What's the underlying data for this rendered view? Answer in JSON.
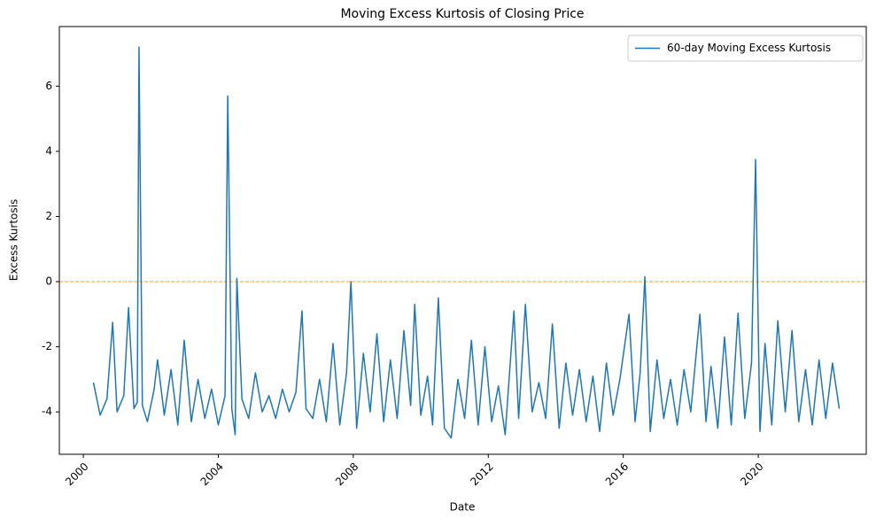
{
  "chart_data": {
    "type": "line",
    "title": "Moving Excess Kurtosis of Closing Price",
    "x_label": "Date",
    "y_label": "Excess Kurtosis",
    "x": [
      2000.3,
      2000.5,
      2000.7,
      2000.87,
      2001.0,
      2001.2,
      2001.34,
      2001.5,
      2001.6,
      2001.65,
      2001.75,
      2001.9,
      2002.1,
      2002.2,
      2002.4,
      2002.6,
      2002.8,
      2002.99,
      2003.2,
      2003.4,
      2003.6,
      2003.8,
      2004.0,
      2004.2,
      2004.28,
      2004.4,
      2004.5,
      2004.55,
      2004.7,
      2004.9,
      2005.1,
      2005.3,
      2005.5,
      2005.7,
      2005.9,
      2006.1,
      2006.3,
      2006.48,
      2006.6,
      2006.8,
      2007.0,
      2007.2,
      2007.4,
      2007.6,
      2007.8,
      2007.93,
      2008.1,
      2008.3,
      2008.5,
      2008.7,
      2008.9,
      2009.1,
      2009.3,
      2009.5,
      2009.7,
      2009.82,
      2010.0,
      2010.2,
      2010.35,
      2010.52,
      2010.7,
      2010.9,
      2011.1,
      2011.3,
      2011.5,
      2011.7,
      2011.9,
      2012.1,
      2012.3,
      2012.5,
      2012.76,
      2012.9,
      2013.1,
      2013.3,
      2013.5,
      2013.7,
      2013.9,
      2014.1,
      2014.3,
      2014.5,
      2014.7,
      2014.9,
      2015.1,
      2015.3,
      2015.5,
      2015.7,
      2015.9,
      2016.17,
      2016.35,
      2016.5,
      2016.64,
      2016.8,
      2017.0,
      2017.2,
      2017.4,
      2017.6,
      2017.8,
      2018.0,
      2018.27,
      2018.45,
      2018.6,
      2018.8,
      2019.0,
      2019.2,
      2019.4,
      2019.6,
      2019.8,
      2019.92,
      2020.05,
      2020.2,
      2020.4,
      2020.58,
      2020.8,
      2021.0,
      2021.2,
      2021.4,
      2021.6,
      2021.8,
      2022.0,
      2022.2,
      2022.4
    ],
    "series": [
      {
        "name": "60-day Moving Excess Kurtosis",
        "color": "#1f77b4",
        "values": [
          -3.1,
          -4.1,
          -3.6,
          -1.25,
          -4.0,
          -3.5,
          -0.8,
          -3.9,
          -3.7,
          7.2,
          -3.8,
          -4.3,
          -3.3,
          -2.4,
          -4.1,
          -2.7,
          -4.4,
          -1.8,
          -4.3,
          -3.0,
          -4.2,
          -3.3,
          -4.4,
          -3.5,
          5.7,
          -3.9,
          -4.7,
          0.1,
          -3.6,
          -4.2,
          -2.8,
          -4.0,
          -3.5,
          -4.2,
          -3.3,
          -4.0,
          -3.4,
          -0.9,
          -3.9,
          -4.2,
          -3.0,
          -4.3,
          -1.9,
          -4.4,
          -2.8,
          0.0,
          -4.5,
          -2.2,
          -4.0,
          -1.6,
          -4.3,
          -2.4,
          -4.2,
          -1.5,
          -3.8,
          -0.7,
          -4.1,
          -2.9,
          -4.4,
          -0.5,
          -4.5,
          -4.8,
          -3.0,
          -4.2,
          -1.8,
          -4.4,
          -2.0,
          -4.3,
          -3.2,
          -4.7,
          -0.9,
          -4.2,
          -0.7,
          -4.0,
          -3.1,
          -4.2,
          -1.3,
          -4.5,
          -2.5,
          -4.1,
          -2.7,
          -4.3,
          -2.9,
          -4.6,
          -2.5,
          -4.1,
          -3.0,
          -1.0,
          -4.3,
          -2.8,
          0.15,
          -4.6,
          -2.4,
          -4.2,
          -3.0,
          -4.4,
          -2.7,
          -4.0,
          -1.0,
          -4.3,
          -2.6,
          -4.5,
          -1.7,
          -4.4,
          -0.97,
          -4.2,
          -2.5,
          3.75,
          -4.6,
          -1.9,
          -4.4,
          -1.2,
          -4.0,
          -1.5,
          -4.3,
          -2.7,
          -4.4,
          -2.4,
          -4.2,
          -2.5,
          -3.9
        ]
      }
    ],
    "reference_line": {
      "value": 0,
      "color": "#ff9f1c"
    },
    "xlim": [
      1999.29,
      2023.2
    ],
    "xticks": [
      2000,
      2004,
      2008,
      2012,
      2016,
      2020
    ],
    "ylim": [
      -5.3,
      7.83
    ],
    "yticks": [
      -4,
      -2,
      0,
      2,
      4,
      6
    ],
    "legend": "upper right",
    "grid": false
  }
}
